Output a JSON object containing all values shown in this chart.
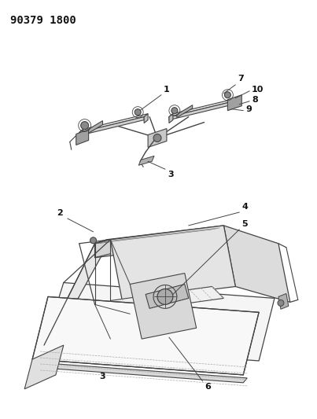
{
  "title": "90379 1800",
  "bg_color": "#ffffff",
  "line_color": "#444444",
  "text_color": "#111111",
  "title_fontsize": 10,
  "label_fontsize": 8,
  "fig_width": 4.03,
  "fig_height": 5.33,
  "dpi": 100
}
